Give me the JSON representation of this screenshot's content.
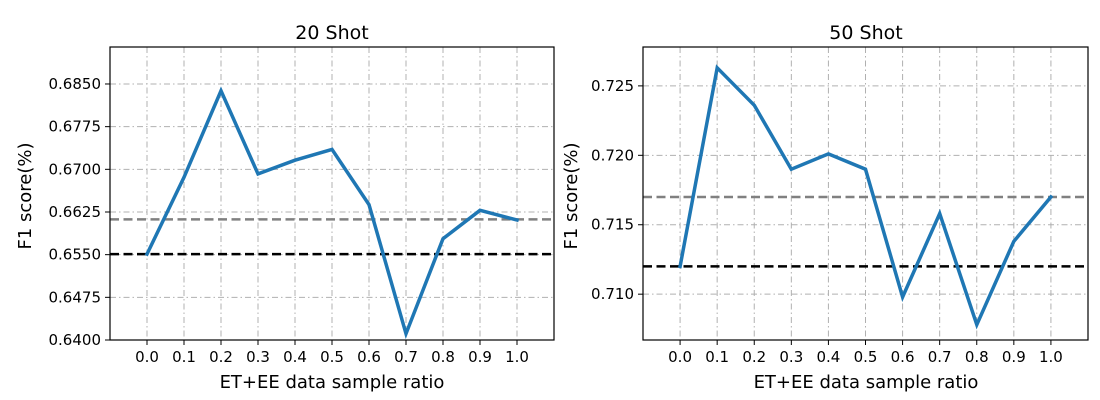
{
  "chart_data": [
    {
      "type": "line",
      "title": "20 Shot",
      "xlabel": "ET+EE data sample ratio",
      "ylabel": "F1 score(%)",
      "xlim": [
        -0.1,
        1.1
      ],
      "ylim": [
        0.64,
        0.6915
      ],
      "grid": true,
      "x": [
        0.0,
        0.1,
        0.2,
        0.3,
        0.4,
        0.5,
        0.6,
        0.7,
        0.8,
        0.9,
        1.0
      ],
      "x_ticks": [
        "0.0",
        "0.1",
        "0.2",
        "0.3",
        "0.4",
        "0.5",
        "0.6",
        "0.7",
        "0.8",
        "0.9",
        "1.0"
      ],
      "y_ticks": [
        0.64,
        0.6475,
        0.655,
        0.6625,
        0.67,
        0.6775,
        0.685
      ],
      "y_tick_labels": [
        "0.6400",
        "0.6475",
        "0.6550",
        "0.6625",
        "0.6700",
        "0.6775",
        "0.6850"
      ],
      "series": [
        {
          "values": [
            0.6551,
            0.6686,
            0.6838,
            0.6692,
            0.6716,
            0.6735,
            0.6638,
            0.6411,
            0.6578,
            0.6628,
            0.6611
          ],
          "color": "#1f77b4"
        }
      ],
      "reference_lines": [
        {
          "y": 0.6612,
          "color": "#808080",
          "style": "dashed"
        },
        {
          "y": 0.6551,
          "color": "#000000",
          "style": "dashed"
        }
      ]
    },
    {
      "type": "line",
      "title": "50 Shot",
      "xlabel": "ET+EE data sample ratio",
      "ylabel": "F1 score(%)",
      "xlim": [
        -0.1,
        1.1
      ],
      "ylim": [
        0.7067,
        0.7278
      ],
      "grid": true,
      "x": [
        0.0,
        0.1,
        0.2,
        0.3,
        0.4,
        0.5,
        0.6,
        0.7,
        0.8,
        0.9,
        1.0
      ],
      "x_ticks": [
        "0.0",
        "0.1",
        "0.2",
        "0.3",
        "0.4",
        "0.5",
        "0.6",
        "0.7",
        "0.8",
        "0.9",
        "1.0"
      ],
      "y_ticks": [
        0.71,
        0.715,
        0.72,
        0.725
      ],
      "y_tick_labels": [
        "0.710",
        "0.715",
        "0.720",
        "0.725"
      ],
      "series": [
        {
          "values": [
            0.712,
            0.7263,
            0.7236,
            0.719,
            0.7201,
            0.719,
            0.7098,
            0.7158,
            0.7078,
            0.7138,
            0.717
          ],
          "color": "#1f77b4"
        }
      ],
      "reference_lines": [
        {
          "y": 0.717,
          "color": "#808080",
          "style": "dashed"
        },
        {
          "y": 0.712,
          "color": "#000000",
          "style": "dashed"
        }
      ]
    }
  ]
}
